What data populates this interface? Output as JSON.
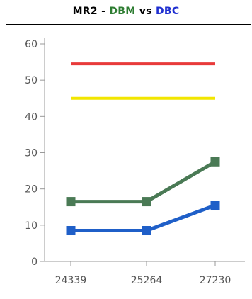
{
  "title": {
    "prefix": "MR2 - ",
    "series_a": "DBM",
    "separator": " vs ",
    "series_b": "DBC"
  },
  "colors": {
    "title_text": "#000000",
    "dbm": "#2e7d32",
    "dbc": "#1f2fd0",
    "red_line": "#e83a3a",
    "yellow_line": "#f2e600",
    "green_series": "#4a7a55",
    "blue_series": "#1f5fc8",
    "axis": "#999999"
  },
  "chart_data": {
    "type": "line",
    "categories": [
      "24339",
      "25264",
      "27230"
    ],
    "ylim": [
      0,
      60
    ],
    "yticks": [
      0,
      10,
      20,
      30,
      40,
      50,
      60
    ],
    "grid": false,
    "series": [
      {
        "values": [
          54.5,
          54.5,
          54.5
        ],
        "color": "#e83a3a",
        "markers": false
      },
      {
        "values": [
          45,
          45,
          45
        ],
        "color": "#f2e600",
        "markers": false
      },
      {
        "values": [
          16.5,
          16.5,
          27.5
        ],
        "color": "#4a7a55",
        "markers": true
      },
      {
        "values": [
          8.5,
          8.5,
          15.5
        ],
        "color": "#1f5fc8",
        "markers": true
      }
    ]
  }
}
